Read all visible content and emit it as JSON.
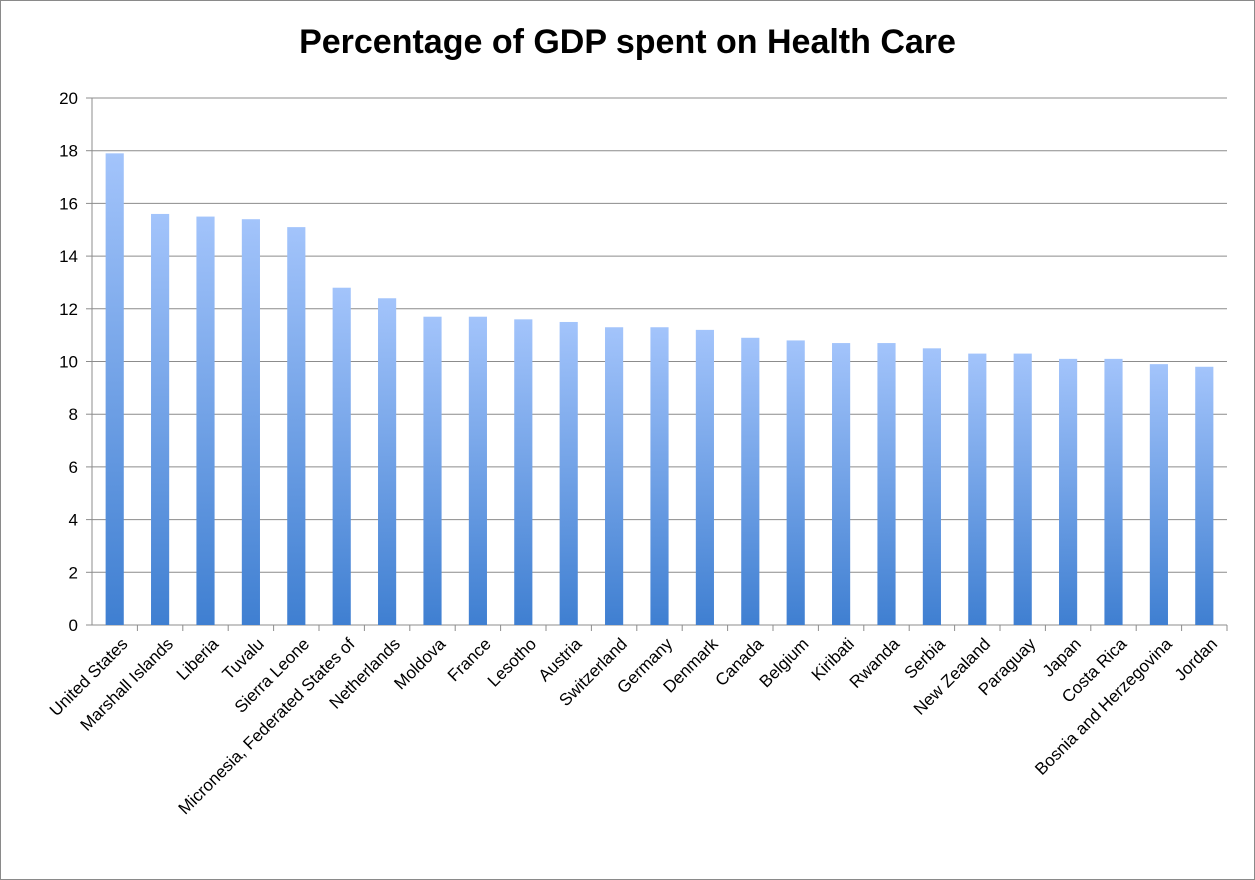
{
  "chart_data": {
    "type": "bar",
    "title": "Percentage of GDP spent on Health Care",
    "xlabel": "",
    "ylabel": "",
    "ylim": [
      0,
      20
    ],
    "yticks": [
      0,
      2,
      4,
      6,
      8,
      10,
      12,
      14,
      16,
      18,
      20
    ],
    "grid": true,
    "legend": "none",
    "categories": [
      "United States",
      "Marshall Islands",
      "Liberia",
      "Tuvalu",
      "Sierra Leone",
      "Micronesia, Federated States of",
      "Netherlands",
      "Moldova",
      "France",
      "Lesotho",
      "Austria",
      "Switzerland",
      "Germany",
      "Denmark",
      "Canada",
      "Belgium",
      "Kiribati",
      "Rwanda",
      "Serbia",
      "New Zealand",
      "Paraguay",
      "Japan",
      "Costa Rica",
      "Bosnia and Herzegovina",
      "Jordan"
    ],
    "values": [
      17.9,
      15.6,
      15.5,
      15.4,
      15.1,
      12.8,
      12.4,
      11.7,
      11.7,
      11.6,
      11.5,
      11.3,
      11.3,
      11.2,
      10.9,
      10.8,
      10.7,
      10.7,
      10.5,
      10.3,
      10.3,
      10.1,
      10.1,
      9.9,
      9.8
    ],
    "colors": {
      "bar_top": "#a3c4fb",
      "bar_bottom": "#3f7fd1",
      "gridline": "#8c8c8c",
      "axis": "#8c8c8c"
    }
  }
}
